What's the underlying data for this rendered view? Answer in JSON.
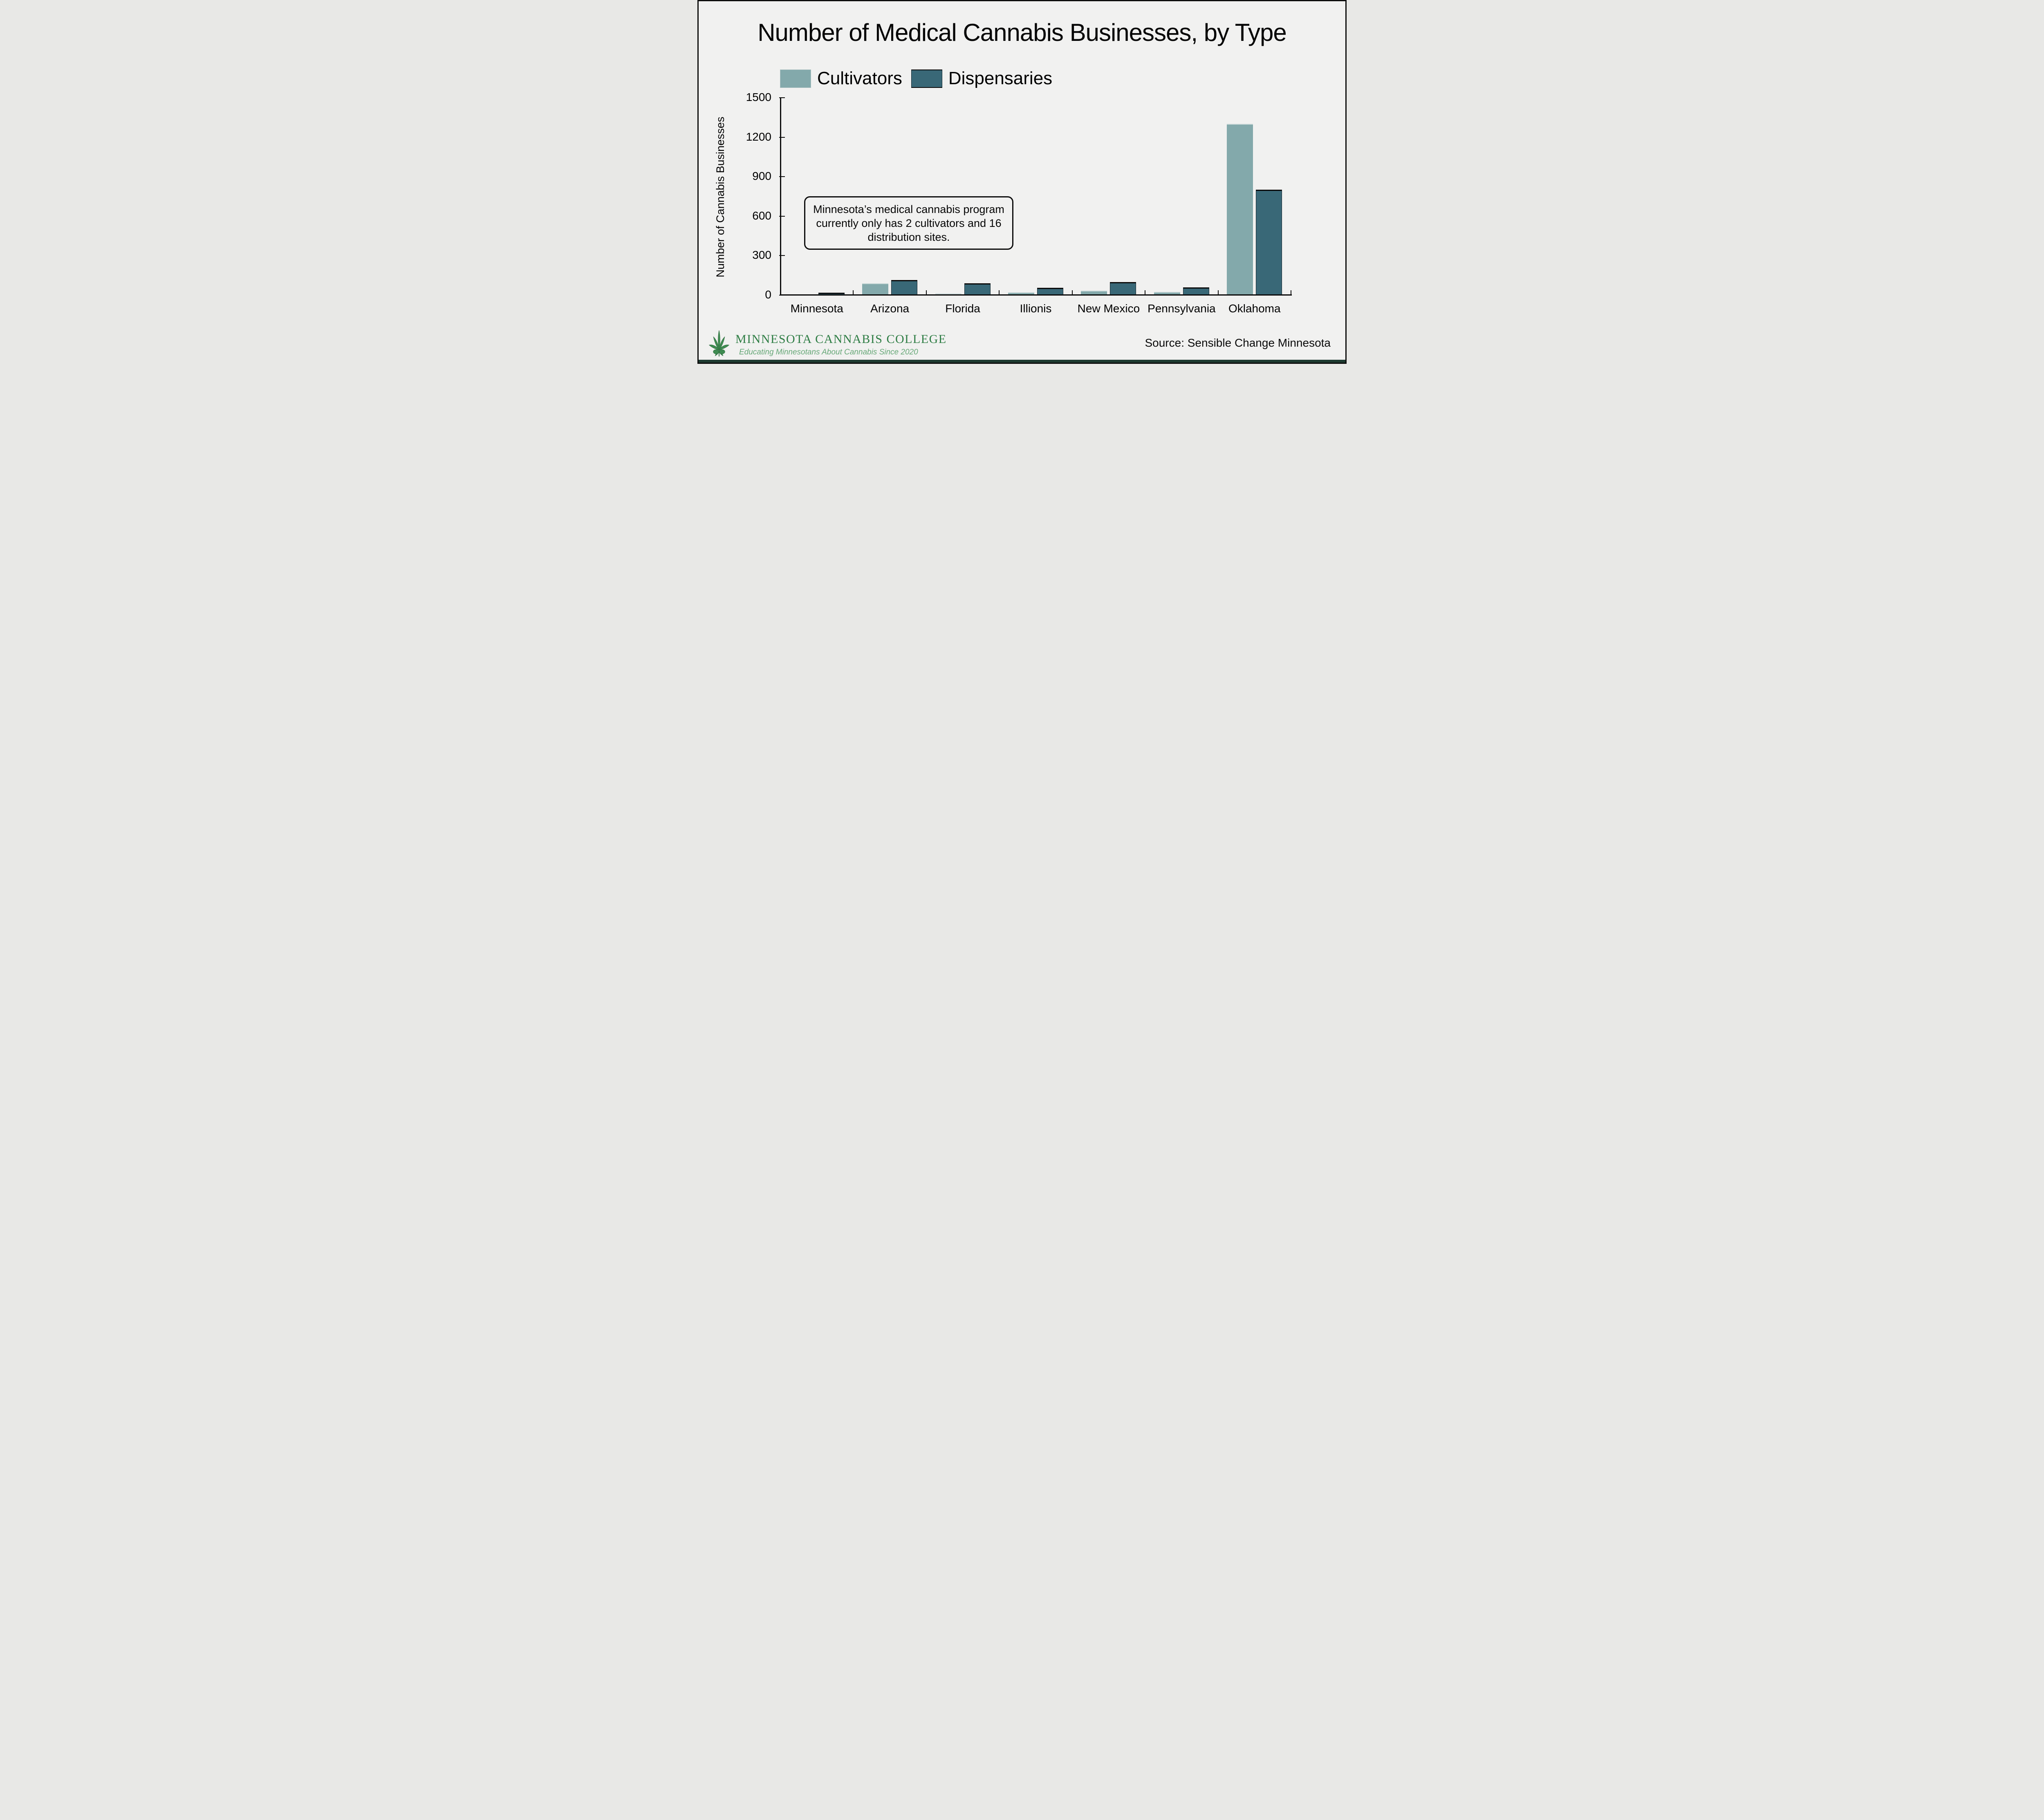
{
  "title": "Number of Medical Cannabis Businesses, by Type",
  "legend": [
    {
      "label": "Cultivators",
      "color": "#83a9ab"
    },
    {
      "label": "Dispensaries",
      "color": "#396877"
    }
  ],
  "annotation": "Minnesota’s medical cannabis program currently only has 2 cultivators and 16 distribution sites.",
  "source": "Source: Sensible Change Minnesota",
  "footer": {
    "org": "MINNESOTA CANNABIS COLLEGE",
    "tagline": "Educating Minnesotans About Cannabis Since 2020",
    "org_color": "#2e7d44",
    "tagline_color": "#67a878",
    "leaf_color": "#3f8c51",
    "leaf_outline": "#2c6b3d"
  },
  "frame": {
    "background": "#f1f1f0",
    "border_color": "#0d0d0d",
    "bottom_strip_color": "#1d3a30"
  },
  "chart_data": {
    "type": "bar",
    "title": "Number of Medical Cannabis Businesses, by Type",
    "categories": [
      "Minnesota",
      "Arizona",
      "Florida",
      "Illionis",
      "New Mexico",
      "Pennsylvania",
      "Oklahoma"
    ],
    "series": [
      {
        "name": "Cultivators",
        "color": "#83a9ab",
        "values": [
          2,
          90,
          12,
          20,
          34,
          23,
          1300
        ]
      },
      {
        "name": "Dispensaries",
        "color": "#396877",
        "values": [
          16,
          115,
          88,
          54,
          98,
          58,
          800
        ]
      }
    ],
    "xlabel": "",
    "ylabel": "Number of Cannabis Businesses",
    "yticks": [
      0,
      300,
      600,
      900,
      1200,
      1500
    ],
    "ylim": [
      0,
      1500
    ],
    "grid": false,
    "legend_position": "top-left"
  }
}
